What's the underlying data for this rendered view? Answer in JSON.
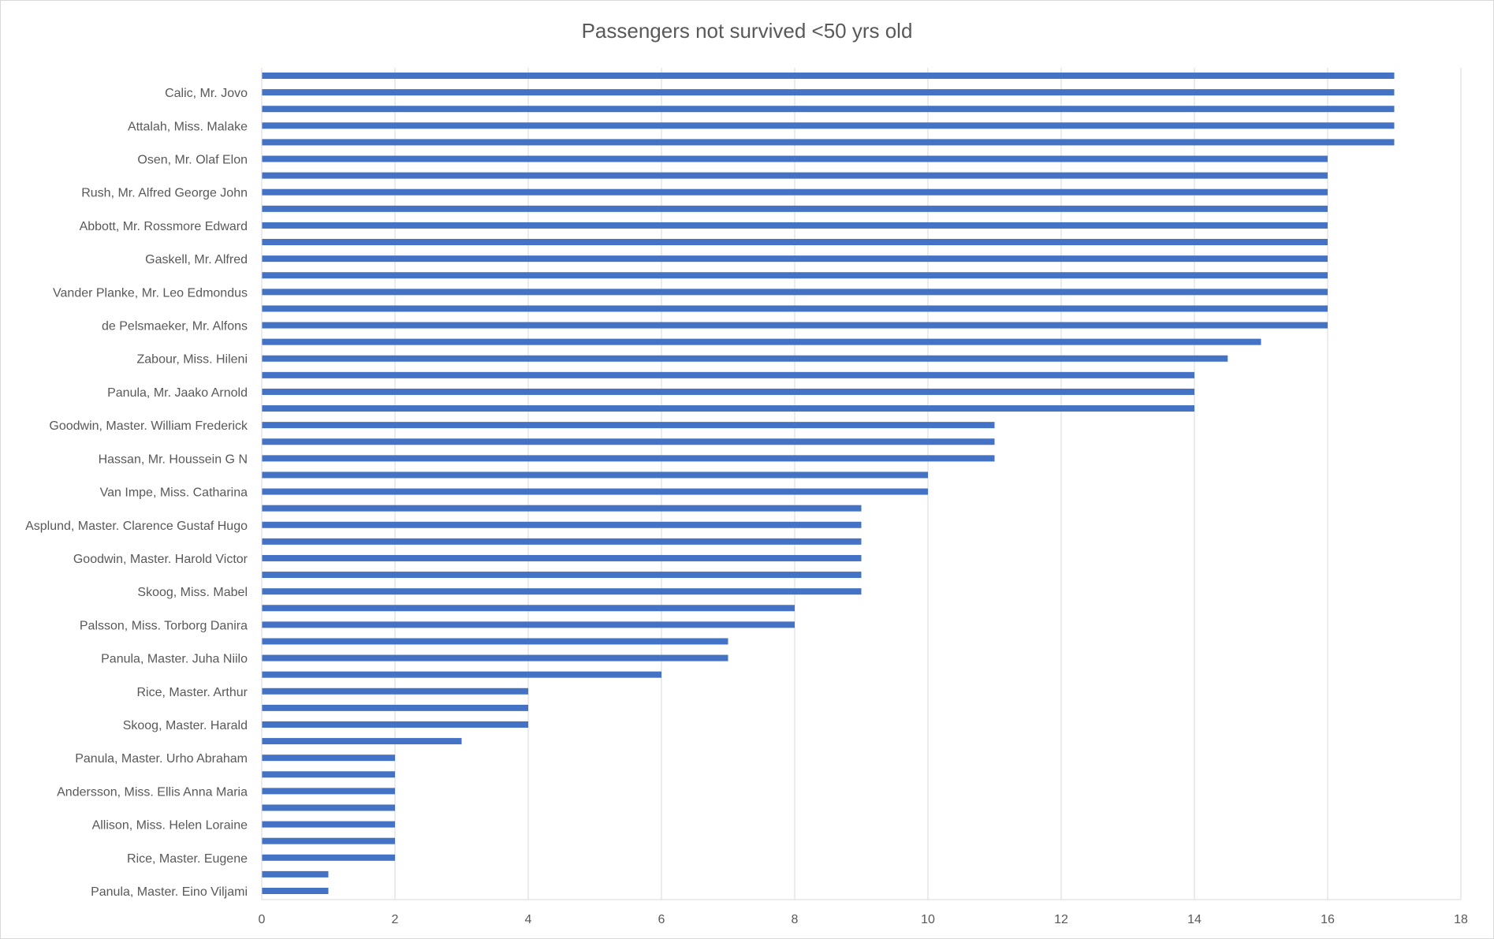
{
  "chart_data": {
    "type": "bar",
    "orientation": "horizontal",
    "title": "Passengers not survived <50 yrs old",
    "xlabel": "",
    "ylabel": "",
    "xlim": [
      0,
      18
    ],
    "xticks": [
      0,
      2,
      4,
      6,
      8,
      10,
      12,
      14,
      16,
      18
    ],
    "grid": "vertical",
    "legend": "none",
    "bar_color": "#4472c4",
    "categories": [
      "",
      "Calic, Mr. Jovo",
      "",
      "Attalah, Miss. Malake",
      "",
      "Osen, Mr. Olaf Elon",
      "",
      "Rush, Mr. Alfred George John",
      "",
      "Abbott, Mr. Rossmore Edward",
      "",
      "Gaskell, Mr. Alfred",
      "",
      "Vander Planke, Mr. Leo Edmondus",
      "",
      "de Pelsmaeker, Mr. Alfons",
      "",
      "Zabour, Miss. Hileni",
      "",
      "Panula, Mr. Jaako Arnold",
      "",
      "Goodwin, Master. William Frederick",
      "",
      "Hassan, Mr. Houssein G N",
      "",
      "Van Impe, Miss. Catharina",
      "",
      "Asplund, Master. Clarence Gustaf Hugo",
      "",
      "Goodwin, Master. Harold Victor",
      "",
      "Skoog, Miss. Mabel",
      "",
      "Palsson, Miss. Torborg Danira",
      "",
      "Panula, Master. Juha Niilo",
      "",
      "Rice, Master. Arthur",
      "",
      "Skoog, Master. Harald",
      "",
      "Panula, Master. Urho Abraham",
      "",
      "Andersson, Miss. Ellis Anna Maria",
      "",
      "Allison, Miss. Helen Loraine",
      "",
      "Rice, Master. Eugene",
      "",
      "Panula, Master. Eino Viljami"
    ],
    "values": [
      17,
      17,
      17,
      17,
      17,
      16,
      16,
      16,
      16,
      16,
      16,
      16,
      16,
      16,
      16,
      16,
      15,
      14.5,
      14,
      14,
      14,
      11,
      11,
      11,
      10,
      10,
      9,
      9,
      9,
      9,
      9,
      9,
      8,
      8,
      7,
      7,
      6,
      4,
      4,
      4,
      3,
      2,
      2,
      2,
      2,
      2,
      2,
      2,
      1,
      1
    ]
  }
}
